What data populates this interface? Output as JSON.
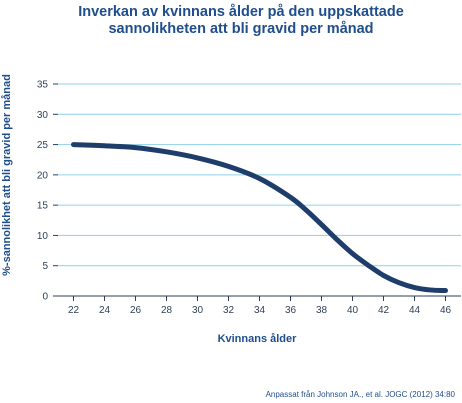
{
  "chart_data": {
    "type": "line",
    "title_lines": [
      "Inverkan av kvinnans ålder på den uppskattade",
      "sannolikheten att bli gravid per månad"
    ],
    "xlabel": "Kvinnans ålder",
    "ylabel": "%-sannolikhet att bli gravid per månad",
    "source": "Anpassat från Johnson JA., et al. JOGC (2012) 34:80",
    "xlim": [
      21,
      47
    ],
    "ylim": [
      0,
      35
    ],
    "x_ticks": [
      22,
      24,
      26,
      28,
      30,
      32,
      34,
      36,
      38,
      40,
      42,
      44,
      46
    ],
    "y_ticks": [
      0,
      5,
      10,
      15,
      20,
      25,
      30,
      35
    ],
    "grid": "horizontal",
    "series": [
      {
        "color": "#1e3d6b",
        "x": [
          22,
          24,
          26,
          28,
          30,
          32,
          34,
          36,
          37,
          38,
          39,
          40,
          41,
          42,
          43,
          44,
          45,
          46
        ],
        "y": [
          25,
          24.8,
          24.5,
          23.8,
          22.8,
          21.4,
          19.4,
          16.3,
          14.2,
          11.8,
          9.3,
          7.0,
          5.1,
          3.4,
          2.2,
          1.4,
          1.0,
          0.9
        ]
      }
    ]
  },
  "colors": {
    "grid": "#8fd0ea",
    "axis": "#2f3f55",
    "title": "#1f4e8c",
    "line": "#1e3d6b"
  }
}
